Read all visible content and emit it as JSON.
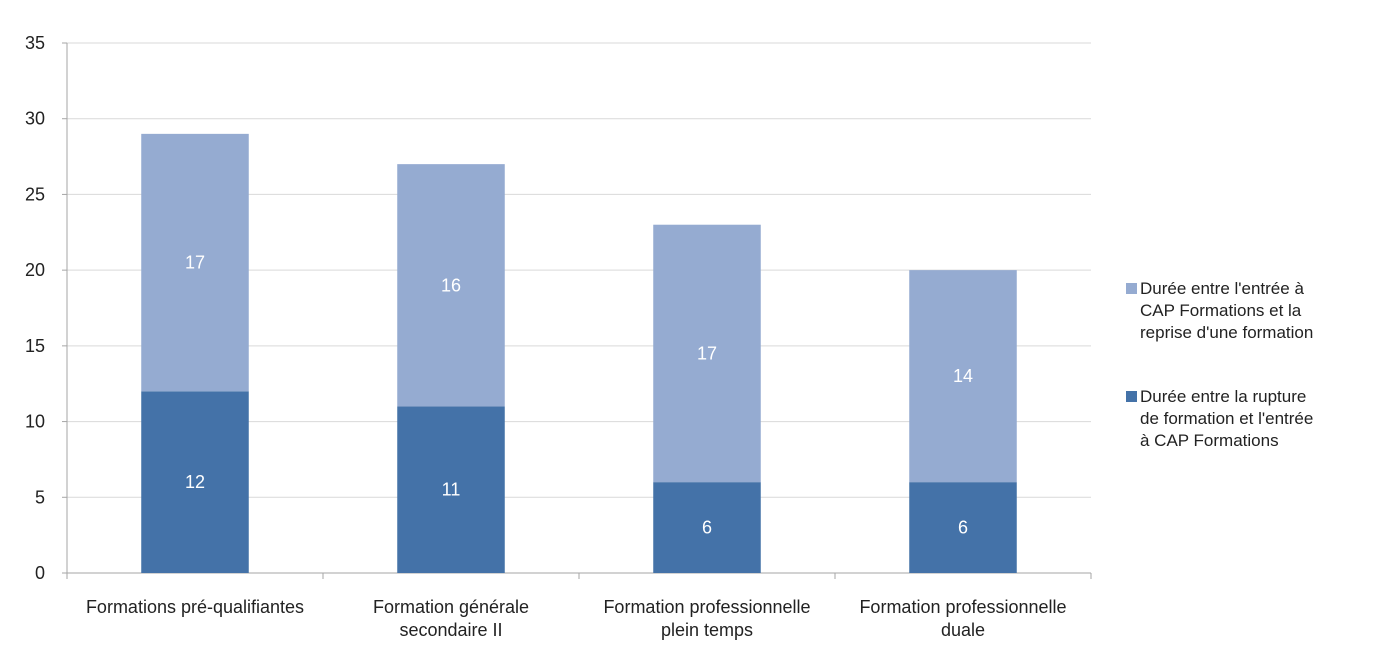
{
  "chart_data": {
    "type": "bar",
    "stacked": true,
    "title": "",
    "xlabel": "",
    "ylabel": "",
    "categories": [
      [
        "Formations pré-qualifiantes"
      ],
      [
        "Formation générale",
        "secondaire II"
      ],
      [
        "Formation professionnelle",
        "plein temps"
      ],
      [
        "Formation professionnelle",
        "duale"
      ]
    ],
    "series": [
      {
        "name": "Durée entre la rupture de formation et l'entrée à CAP Formations",
        "legend_lines": [
          "Durée entre la rupture",
          "de formation et l'entrée",
          "à CAP Formations"
        ],
        "color": "#4472a8",
        "values": [
          12,
          11,
          6,
          6
        ]
      },
      {
        "name": "Durée entre l'entrée à CAP Formations et la reprise d'une formation",
        "legend_lines": [
          "Durée entre l'entrée à",
          "CAP Formations et la",
          "reprise d'une formation"
        ],
        "color": "#95abd1",
        "values": [
          17,
          16,
          17,
          14
        ]
      }
    ],
    "data_labels": true,
    "ylim": [
      0,
      35
    ],
    "yticks": [
      0,
      5,
      10,
      15,
      20,
      25,
      30,
      35
    ],
    "grid": true,
    "gridline_color": "#d9d9d9",
    "axis_color": "#a6a6a6",
    "data_label_color": "#ffffff",
    "legend_position": "right"
  }
}
